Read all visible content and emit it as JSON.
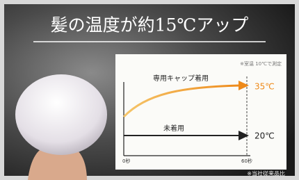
{
  "title": "髪の温度が約15℃アップ",
  "chart": {
    "note": "※室温 10℃で測定",
    "with_cap_label": "専用キャップ着用",
    "with_cap_temp": "35℃",
    "without_cap_label": "未着用",
    "without_cap_temp": "20℃",
    "x_start": "0秒",
    "x_end": "60秒"
  },
  "footnote": "※当社従来品比"
}
